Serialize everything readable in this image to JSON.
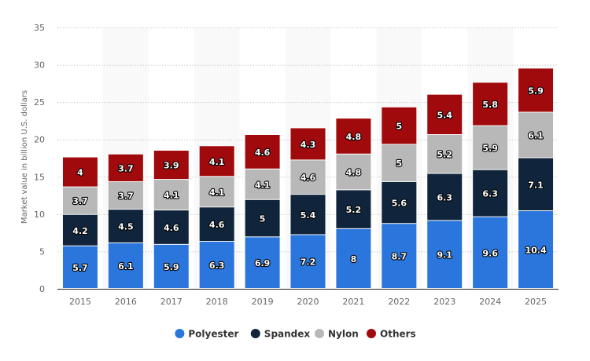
{
  "chart_data": {
    "type": "bar",
    "stacked": true,
    "categories": [
      "2015",
      "2016",
      "2017",
      "2018",
      "2019",
      "2020",
      "2021",
      "2022",
      "2023",
      "2024",
      "2025"
    ],
    "series": [
      {
        "name": "Polyester",
        "color": "#2a76dd",
        "values": [
          5.7,
          6.1,
          5.9,
          6.3,
          6.9,
          7.2,
          8,
          8.7,
          9.1,
          9.6,
          10.4
        ]
      },
      {
        "name": "Spandex",
        "color": "#10253c",
        "values": [
          4.2,
          4.5,
          4.6,
          4.6,
          5,
          5.4,
          5.2,
          5.6,
          6.3,
          6.3,
          7.1
        ]
      },
      {
        "name": "Nylon",
        "color": "#b8b8b8",
        "values": [
          3.7,
          3.7,
          4.1,
          4.1,
          4.1,
          4.6,
          4.8,
          5,
          5.2,
          5.9,
          6.1
        ]
      },
      {
        "name": "Others",
        "color": "#a10a0c",
        "values": [
          4,
          3.7,
          3.9,
          4.1,
          4.6,
          4.3,
          4.8,
          5,
          5.4,
          5.8,
          5.9
        ]
      }
    ],
    "title": "",
    "xlabel": "",
    "ylabel": "Market value in billion U.S. dollars",
    "ylim": [
      0,
      35
    ],
    "yticks": [
      0,
      5,
      10,
      15,
      20,
      25,
      30,
      35
    ],
    "grid": true,
    "legend": "bottom"
  }
}
